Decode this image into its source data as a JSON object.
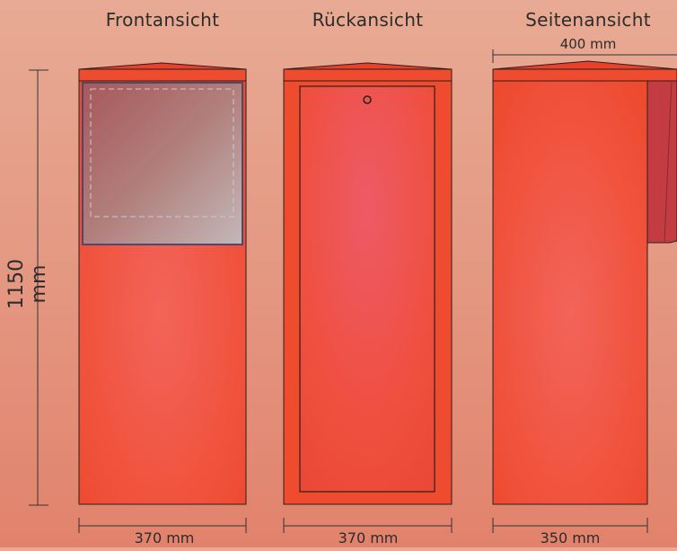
{
  "views": {
    "front": {
      "title": "Frontansicht",
      "width_label": "370 mm"
    },
    "back": {
      "title": "Rückansicht",
      "width_label": "370 mm"
    },
    "side": {
      "title": "Seitenansicht",
      "top_label": "400 mm",
      "width_label": "350 mm"
    }
  },
  "height_label": "1150 mm",
  "colors": {
    "body_red": "#ef4b2e",
    "outline": "#2a1f1f",
    "window_glass": "#b07b7b",
    "panel_pink": "#ee5b63",
    "side_panel": "#c23c42"
  }
}
